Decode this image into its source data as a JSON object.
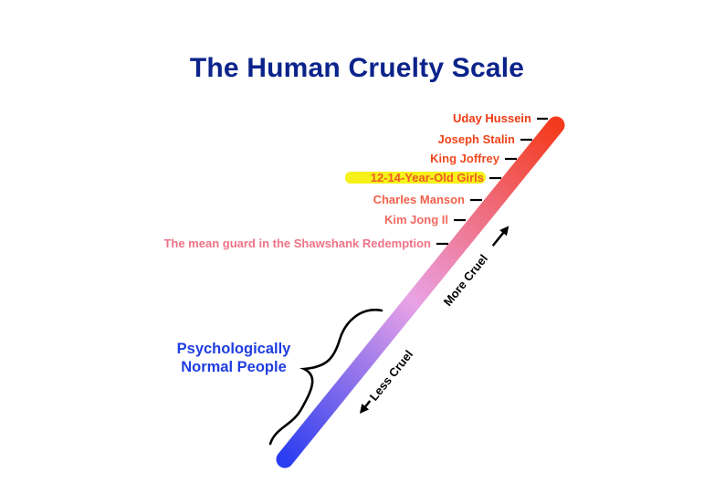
{
  "title": "The Human Cruelty Scale",
  "gradient": {
    "low_color": "#2b3df0",
    "mid_color": "#e9a3e6",
    "high_color": "#f43a1c"
  },
  "markers": [
    {
      "label": "Uday Hussein",
      "color": "#ee3a12",
      "highlighted": false
    },
    {
      "label": "Joseph Stalin",
      "color": "#ee4318",
      "highlighted": false
    },
    {
      "label": "King Joffrey",
      "color": "#ef4a20",
      "highlighted": false
    },
    {
      "label": "12-14-Year-Old Girls",
      "color": "#f25a28",
      "highlighted": true,
      "highlight_color": "#f4f000"
    },
    {
      "label": "Charles Manson",
      "color": "#f1614a",
      "highlighted": false
    },
    {
      "label": "Kim Jong Il",
      "color": "#f06a62",
      "highlighted": false
    },
    {
      "label": "The mean guard in the Shawshank Redemption",
      "color": "#ef7386",
      "highlighted": false
    }
  ],
  "arrows": {
    "more": "More Cruel",
    "less": "Less Cruel"
  },
  "bracket_label": {
    "line1": "Psychologically",
    "line2": "Normal People"
  }
}
